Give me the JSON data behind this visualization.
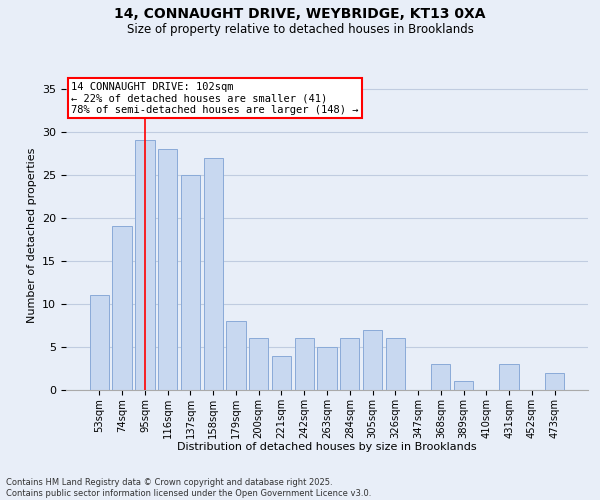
{
  "title_line1": "14, CONNAUGHT DRIVE, WEYBRIDGE, KT13 0XA",
  "title_line2": "Size of property relative to detached houses in Brooklands",
  "xlabel": "Distribution of detached houses by size in Brooklands",
  "ylabel": "Number of detached properties",
  "categories": [
    "53sqm",
    "74sqm",
    "95sqm",
    "116sqm",
    "137sqm",
    "158sqm",
    "179sqm",
    "200sqm",
    "221sqm",
    "242sqm",
    "263sqm",
    "284sqm",
    "305sqm",
    "326sqm",
    "347sqm",
    "368sqm",
    "389sqm",
    "410sqm",
    "431sqm",
    "452sqm",
    "473sqm"
  ],
  "values": [
    11,
    19,
    29,
    28,
    25,
    27,
    8,
    6,
    4,
    6,
    5,
    6,
    7,
    6,
    0,
    3,
    1,
    0,
    3,
    0,
    2
  ],
  "bar_color": "#c8d8f0",
  "bar_edge_color": "#8aaad8",
  "ylim": [
    0,
    36
  ],
  "yticks": [
    0,
    5,
    10,
    15,
    20,
    25,
    30,
    35
  ],
  "red_line_index": 2,
  "annotation_title": "14 CONNAUGHT DRIVE: 102sqm",
  "annotation_line2": "← 22% of detached houses are smaller (41)",
  "annotation_line3": "78% of semi-detached houses are larger (148) →",
  "footer_line1": "Contains HM Land Registry data © Crown copyright and database right 2025.",
  "footer_line2": "Contains public sector information licensed under the Open Government Licence v3.0.",
  "background_color": "#e8eef8",
  "plot_background_color": "#e8eef8",
  "grid_color": "#c0cce0"
}
